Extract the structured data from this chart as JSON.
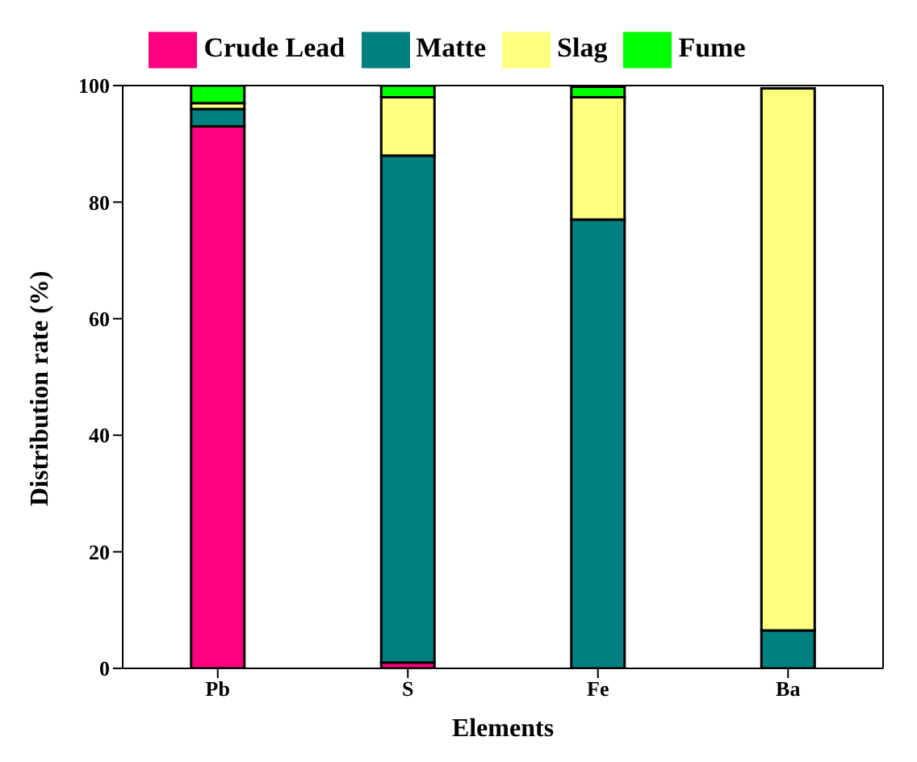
{
  "chart_data": {
    "type": "bar",
    "stacked": true,
    "xlabel": "Elements",
    "ylabel": "Distribution rate (%)",
    "categories": [
      "Pb",
      "S",
      "Fe",
      "Ba"
    ],
    "series": [
      {
        "name": "Crude Lead",
        "color": "#ff0080",
        "values": [
          93,
          1,
          null,
          null
        ]
      },
      {
        "name": "Matte",
        "color": "#008080",
        "values": [
          3,
          87,
          77,
          6.5
        ]
      },
      {
        "name": "Slag",
        "color": "#ffff80",
        "values": [
          1,
          10,
          21,
          93
        ]
      },
      {
        "name": "Fume",
        "color": "#00ff00",
        "values": [
          3,
          2,
          1.8,
          null
        ]
      }
    ],
    "ylim": [
      0,
      100
    ],
    "yticks": [
      0,
      20,
      40,
      60,
      80,
      100
    ],
    "grid": false,
    "legend": "top"
  }
}
